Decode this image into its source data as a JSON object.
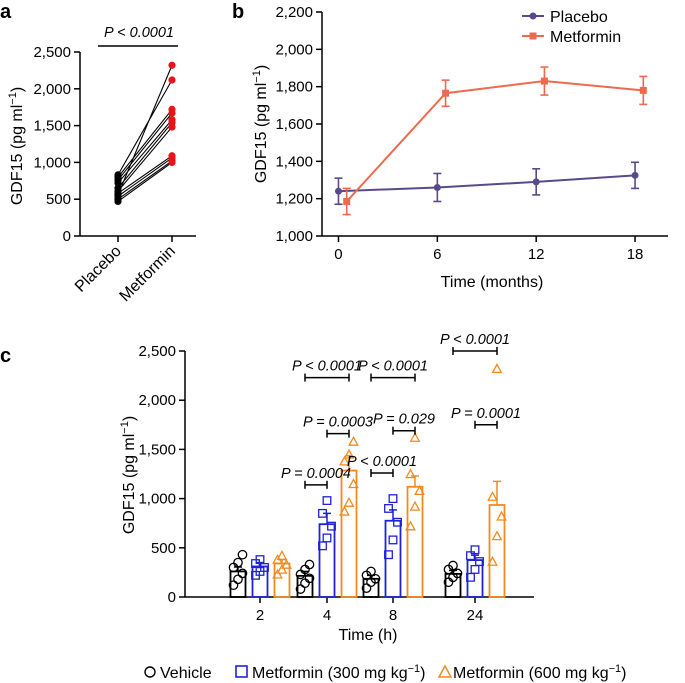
{
  "chart_data": [
    {
      "panel": "a",
      "type": "line",
      "description": "paired lines",
      "categories": [
        "Placebo",
        "Metformin"
      ],
      "ylabel": "GDF15 (pg ml",
      "ylabel_sup": "−1",
      "ylabel_close": ")",
      "ylim": [
        0,
        2500
      ],
      "yticks": [
        0,
        500,
        1000,
        1500,
        2000,
        2500
      ],
      "ytick_labels": [
        "0",
        "500",
        "1,000",
        "1,500",
        "2,000",
        "2,500"
      ],
      "significance": "P < 0.0001",
      "pairs": [
        [
          470,
          1000
        ],
        [
          500,
          1020
        ],
        [
          540,
          1060
        ],
        [
          580,
          1090
        ],
        [
          610,
          1480
        ],
        [
          650,
          1540
        ],
        [
          720,
          1580
        ],
        [
          760,
          1670
        ],
        [
          800,
          1720
        ],
        [
          830,
          2120
        ],
        [
          560,
          2320
        ]
      ],
      "colors": {
        "placebo": "#000000",
        "metformin": "#e8141c",
        "line": "#000000"
      }
    },
    {
      "panel": "b",
      "type": "line",
      "xlabel": "Time (months)",
      "ylabel": "GDF15 (pg ml",
      "ylabel_sup": "−1",
      "ylabel_close": ")",
      "xlim": [
        -1,
        20
      ],
      "xticks": [
        0,
        6,
        12,
        18
      ],
      "xtick_labels": [
        "0",
        "6",
        "12",
        "18"
      ],
      "ylim": [
        1000,
        2200
      ],
      "yticks": [
        1000,
        1200,
        1400,
        1600,
        1800,
        2000,
        2200
      ],
      "ytick_labels": [
        "1,000",
        "1,200",
        "1,400",
        "1,600",
        "1,800",
        "2,000",
        "2,200"
      ],
      "legend": [
        "Placebo",
        "Metformin"
      ],
      "legend_position": "top-right",
      "series": [
        {
          "name": "Placebo",
          "color": "#5a4a8a",
          "marker": "circle",
          "x": [
            0,
            6,
            12,
            18
          ],
          "y": [
            1240,
            1260,
            1290,
            1325
          ],
          "err": [
            70,
            75,
            70,
            70
          ]
        },
        {
          "name": "Metformin",
          "color": "#ee6a4e",
          "marker": "square",
          "x": [
            0.5,
            6.5,
            12.5,
            18.5
          ],
          "y": [
            1185,
            1765,
            1830,
            1780
          ],
          "err": [
            70,
            70,
            75,
            75
          ]
        }
      ]
    },
    {
      "panel": "c",
      "type": "bar",
      "xlabel": "Time (h)",
      "ylabel": "GDF15 (pg ml",
      "ylabel_sup": "−1",
      "ylabel_close": ")",
      "categories": [
        "2",
        "4",
        "8",
        "24"
      ],
      "ylim": [
        0,
        2500
      ],
      "yticks": [
        0,
        500,
        1000,
        1500,
        2000,
        2500
      ],
      "ytick_labels": [
        "0",
        "500",
        "1,000",
        "1,500",
        "2,000",
        "2,500"
      ],
      "series": [
        {
          "name": "Vehicle",
          "color": "#000000",
          "marker": "circle",
          "values": [
            260,
            215,
            185,
            235
          ],
          "err": [
            45,
            45,
            35,
            35
          ],
          "points": [
            [
              120,
              180,
              240,
              300,
              350,
              430
            ],
            [
              80,
              140,
              190,
              230,
              280,
              330
            ],
            [
              90,
              150,
              185,
              220,
              260
            ],
            [
              150,
              200,
              240,
              280,
              320
            ]
          ]
        },
        {
          "name": "Metformin (300 mg kg",
          "sup": "−1",
          "close": ")",
          "color": "#1f22d6",
          "marker": "square",
          "values": [
            310,
            740,
            775,
            375
          ],
          "err": [
            40,
            110,
            110,
            50
          ],
          "points": [
            [
              220,
              260,
              300,
              340,
              380
            ],
            [
              520,
              600,
              720,
              850,
              980
            ],
            [
              430,
              580,
              760,
              900,
              1000
            ],
            [
              200,
              280,
              360,
              420,
              480
            ]
          ]
        },
        {
          "name": "Metformin (600 mg kg",
          "sup": "−1",
          "close": ")",
          "color": "#f28a1e",
          "marker": "triangle",
          "values": [
            340,
            1285,
            1120,
            935
          ],
          "err": [
            40,
            150,
            110,
            240
          ],
          "points": [
            [
              230,
              280,
              330,
              380,
              420
            ],
            [
              870,
              960,
              1150,
              1380,
              1450,
              1580
            ],
            [
              720,
              920,
              1080,
              1250,
              1620
            ],
            [
              360,
              620,
              820,
              1020,
              2320
            ]
          ]
        }
      ],
      "comparisons": [
        {
          "label": "P < 0.0001",
          "group": 1,
          "from": 0,
          "to": 2,
          "level": 2230
        },
        {
          "label": "P = 0.0003",
          "group": 1,
          "from": 1,
          "to": 2,
          "level": 1660
        },
        {
          "label": "P = 0.0004",
          "group": 1,
          "from": 0,
          "to": 1,
          "level": 1140
        },
        {
          "label": "P < 0.0001",
          "group": 2,
          "from": 0,
          "to": 2,
          "level": 2230
        },
        {
          "label": "P = 0.029",
          "group": 2,
          "from": 1,
          "to": 2,
          "level": 1690
        },
        {
          "label": "P < 0.0001",
          "group": 2,
          "from": 0,
          "to": 1,
          "level": 1260
        },
        {
          "label": "P < 0.0001",
          "group": 3,
          "from": 0,
          "to": 2,
          "level": 2500
        },
        {
          "label": "P = 0.0001",
          "group": 3,
          "from": 1,
          "to": 2,
          "level": 1750
        }
      ]
    }
  ]
}
